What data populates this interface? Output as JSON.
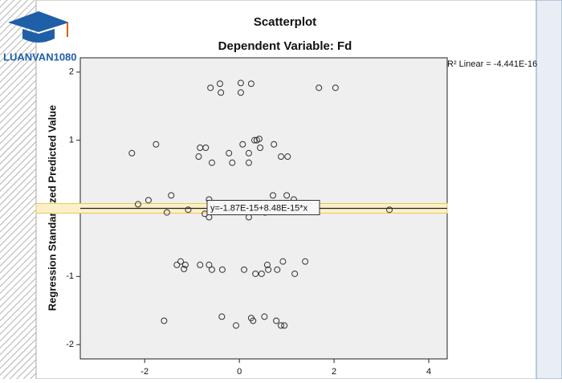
{
  "logo": {
    "name": "LUANVAN1080"
  },
  "chart_data": {
    "type": "scatter",
    "title": "Scatterplot",
    "subtitle": "Dependent Variable: Fd",
    "y_label": "Regression Standardized Predicted Value",
    "annotation": "R² Linear = -4.441E-16",
    "fit_line": {
      "label": "y=-1.87E-15+8.48E-15*x",
      "y": 0,
      "color": "#e8c95a"
    },
    "xlim": [
      -3.36,
      4.39
    ],
    "xticks": [
      -2,
      0,
      2,
      4
    ],
    "ylim": [
      -2.21,
      2.21
    ],
    "yticks": [
      -2,
      -1,
      0,
      1,
      2
    ],
    "series": [
      {
        "name": "Fd",
        "color": "#333333",
        "x": [
          -0.61,
          -0.41,
          -0.39,
          0.03,
          0.03,
          0.25,
          1.68,
          2.03,
          -2.27,
          -1.76,
          -0.86,
          -0.83,
          -0.71,
          -0.58,
          -0.22,
          -0.15,
          0.07,
          0.2,
          0.2,
          0.32,
          0.37,
          0.42,
          0.44,
          0.73,
          0.88,
          1.02,
          -2.14,
          -1.92,
          -1.53,
          -1.44,
          -1.08,
          -0.73,
          -0.64,
          -0.64,
          0.2,
          0.54,
          0.71,
          1.0,
          1.15,
          3.17,
          -1.32,
          -1.24,
          -1.17,
          -1.14,
          -0.83,
          -0.64,
          -0.58,
          -0.36,
          0.1,
          0.34,
          0.47,
          0.59,
          0.61,
          0.8,
          0.92,
          1.17,
          1.39,
          -1.59,
          -0.37,
          -0.07,
          0.25,
          0.29,
          0.53,
          0.78,
          0.88,
          0.95
        ],
        "values": [
          1.77,
          1.83,
          1.7,
          1.84,
          1.7,
          1.83,
          1.77,
          1.77,
          0.81,
          0.94,
          0.76,
          0.89,
          0.89,
          0.67,
          0.81,
          0.67,
          0.94,
          0.81,
          0.67,
          1.0,
          1.0,
          1.02,
          0.89,
          0.94,
          0.76,
          0.76,
          0.06,
          0.12,
          -0.06,
          0.19,
          -0.02,
          -0.08,
          0.13,
          -0.13,
          -0.13,
          -0.06,
          0.19,
          0.19,
          0.13,
          -0.02,
          -0.83,
          -0.78,
          -0.89,
          -0.83,
          -0.83,
          -0.83,
          -0.9,
          -0.9,
          -0.9,
          -0.96,
          -0.96,
          -0.83,
          -0.9,
          -0.9,
          -0.78,
          -0.96,
          -0.78,
          -1.65,
          -1.59,
          -1.72,
          -1.61,
          -1.65,
          -1.59,
          -1.65,
          -1.72,
          -1.72
        ]
      }
    ]
  }
}
